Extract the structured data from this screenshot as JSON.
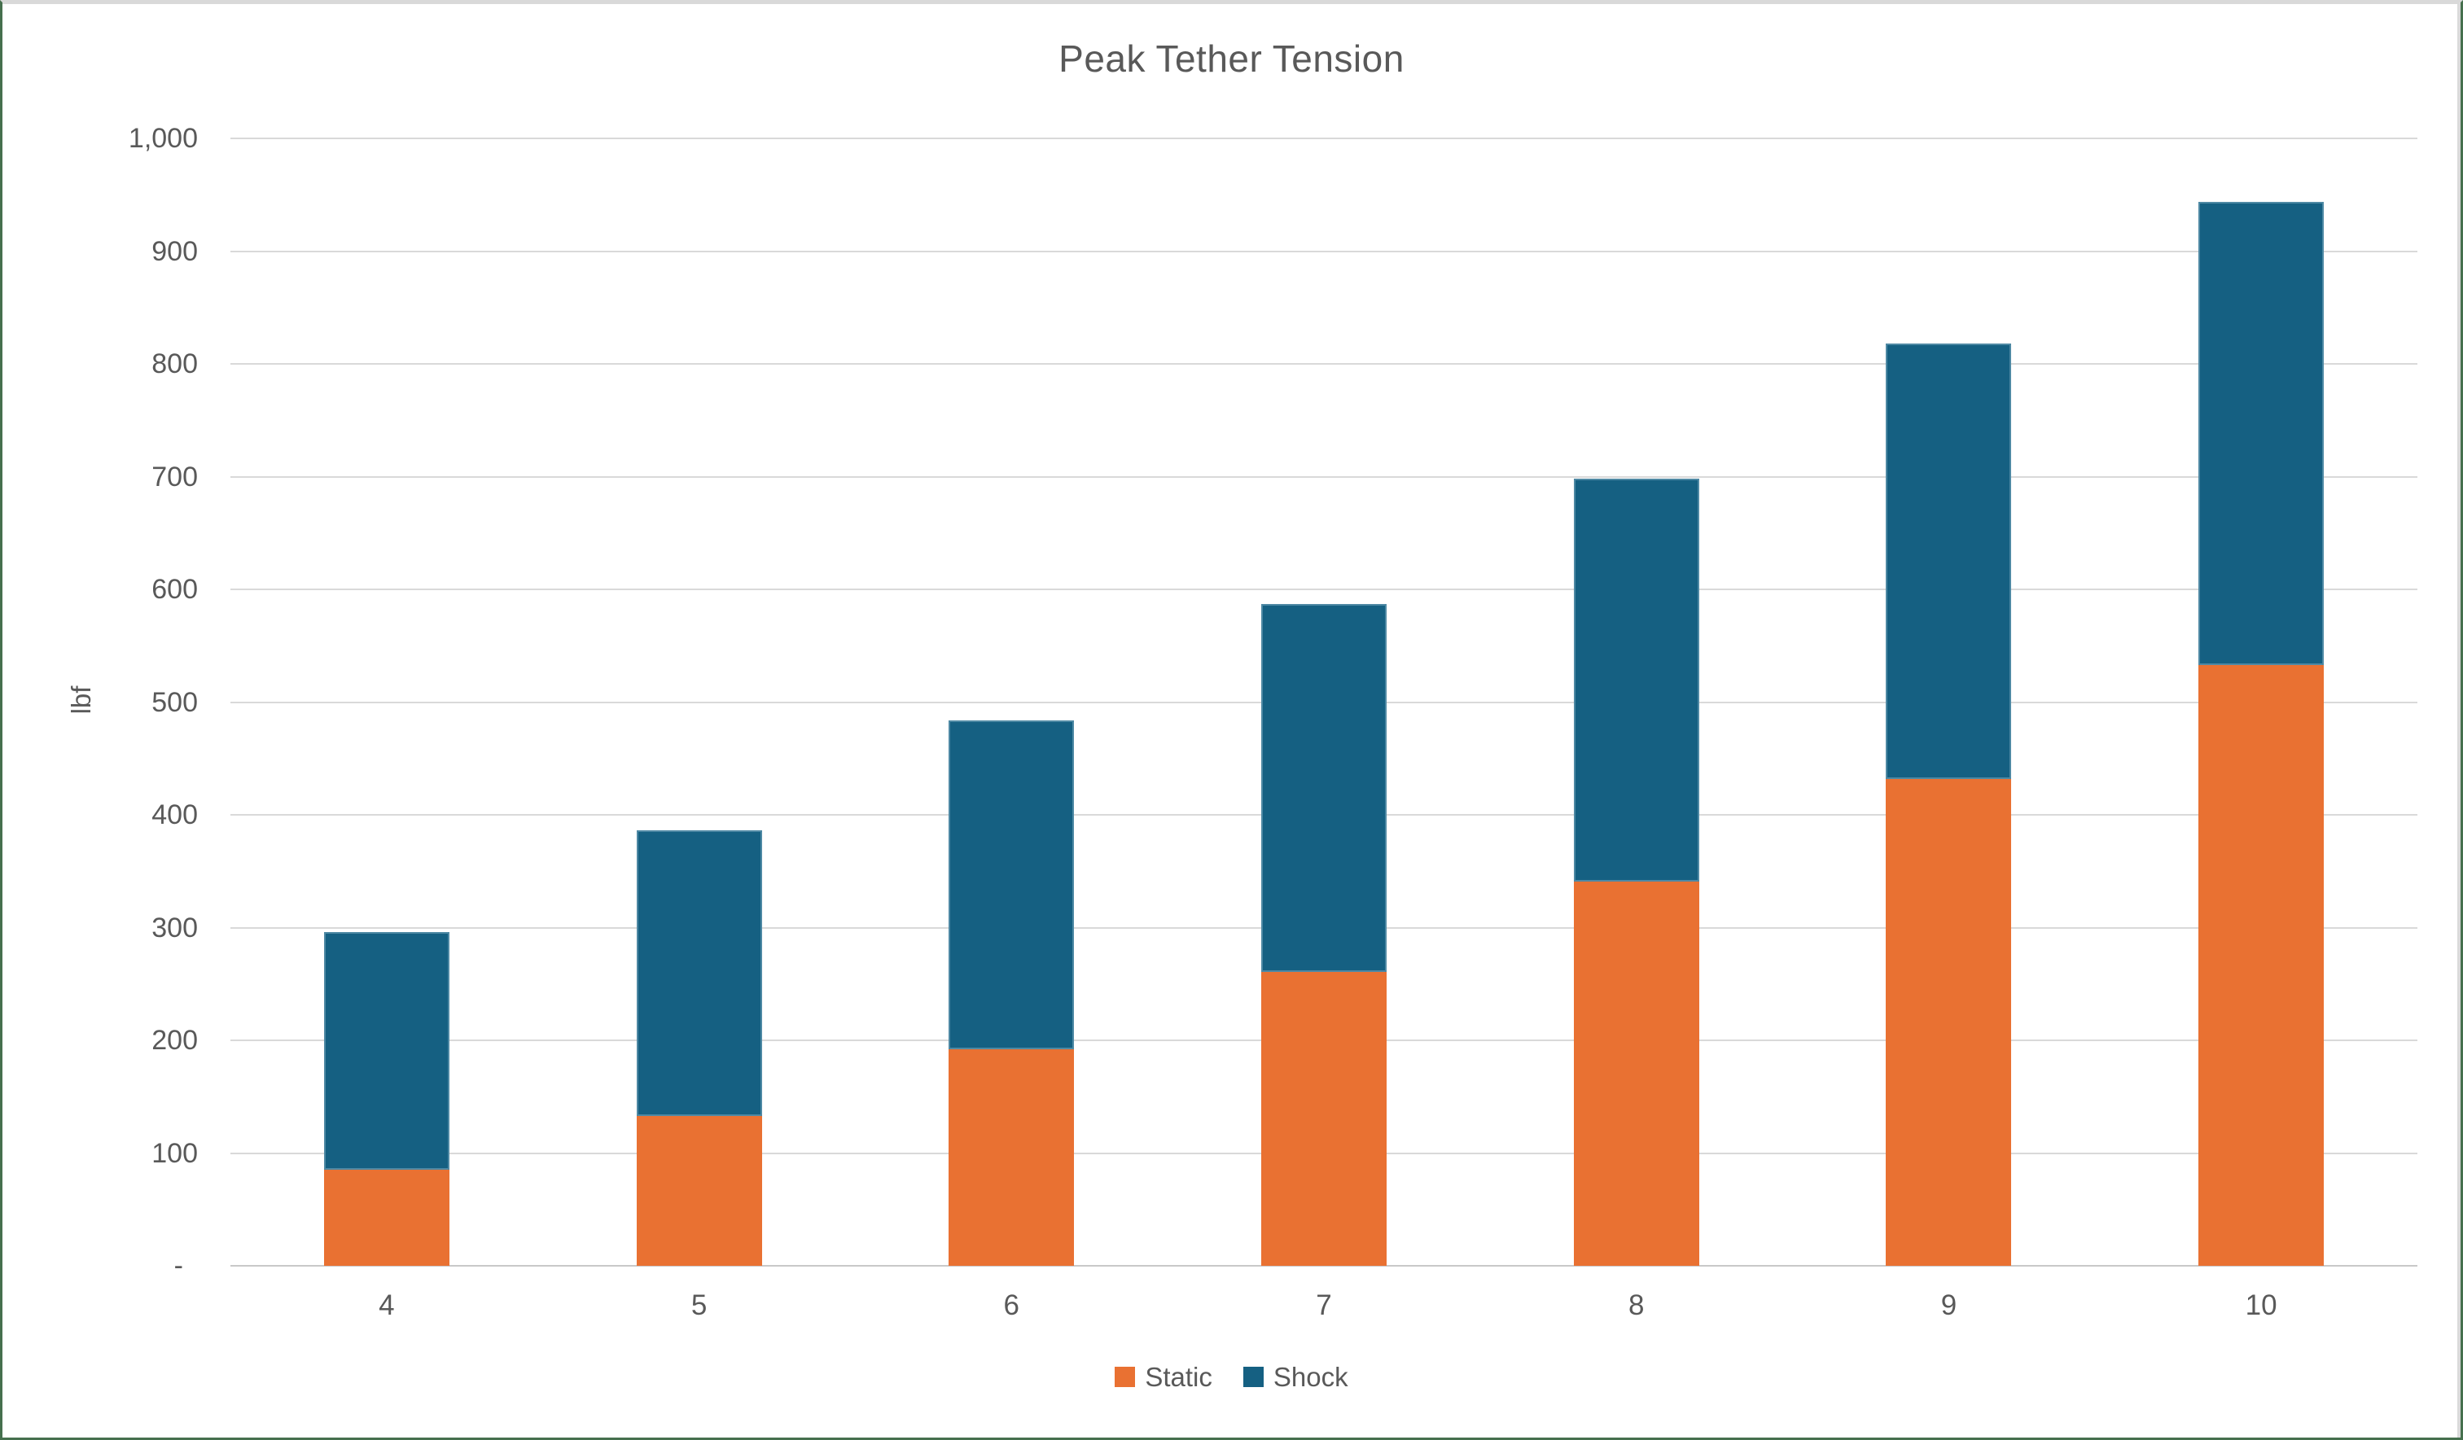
{
  "window": {
    "background": "#ffffff",
    "frame_border_color": "#46704e",
    "frame_inner_edge_color": "#d9d9d9"
  },
  "chart_data": {
    "type": "bar",
    "stacked": true,
    "title": "Peak Tether Tension",
    "ylabel": "lbf",
    "xlabel": "",
    "categories": [
      "4",
      "5",
      "6",
      "7",
      "8",
      "9",
      "10"
    ],
    "series": [
      {
        "name": "Static",
        "color": "#E97132",
        "values": [
          85,
          133,
          192,
          261,
          341,
          432,
          533
        ]
      },
      {
        "name": "Shock",
        "color": "#156082",
        "values": [
          211,
          253,
          292,
          326,
          357,
          386,
          411
        ]
      }
    ],
    "stacked_totals": [
      296,
      386,
      484,
      587,
      698,
      818,
      944
    ],
    "ylim": [
      0,
      1000
    ],
    "yticks": [
      {
        "value": 0,
        "label": "-"
      },
      {
        "value": 100,
        "label": "100"
      },
      {
        "value": 200,
        "label": "200"
      },
      {
        "value": 300,
        "label": "300"
      },
      {
        "value": 400,
        "label": "400"
      },
      {
        "value": 500,
        "label": "500"
      },
      {
        "value": 600,
        "label": "600"
      },
      {
        "value": 700,
        "label": "700"
      },
      {
        "value": 800,
        "label": "800"
      },
      {
        "value": 900,
        "label": "900"
      },
      {
        "value": 1000,
        "label": "1,000"
      }
    ],
    "grid": true,
    "legend_position": "bottom",
    "text_color": "#595959",
    "gridline_color": "#D9D9D9"
  }
}
